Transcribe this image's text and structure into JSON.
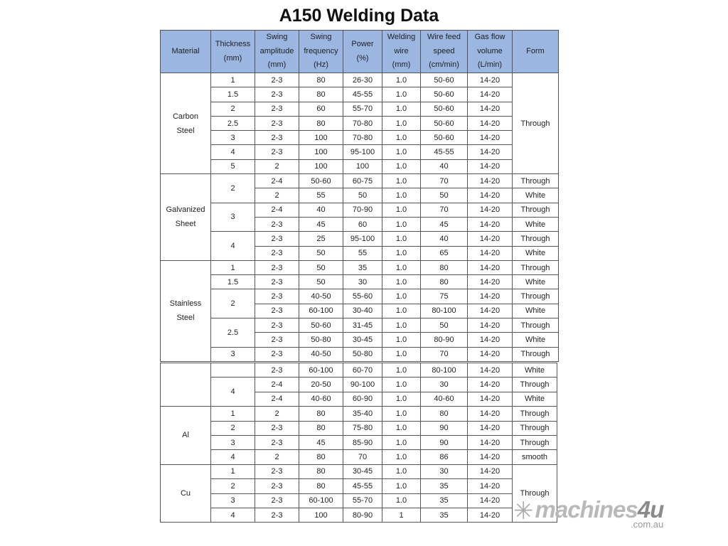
{
  "title": "A150 Welding Data",
  "headers": [
    "Material",
    "Thickness\n(mm)",
    "Swing\namplitude\n(mm)",
    "Swing\nfrequency\n(Hz)",
    "Power\n(%)",
    "Welding\nwire\n(mm)",
    "Wire feed\nspeed\n(cm/min)",
    "Gas flow\nvolume\n(L/min)",
    "Form"
  ],
  "table1": [
    {
      "m": "Carbon\nSteel",
      "ms": 7,
      "t": "1",
      "ts": 1,
      "c": [
        "2-3",
        "80",
        "26-30",
        "1.0",
        "50-60",
        "14-20"
      ],
      "f": "Through",
      "fs": 7
    },
    {
      "t": "1.5",
      "ts": 1,
      "c": [
        "2-3",
        "80",
        "45-55",
        "1.0",
        "50-60",
        "14-20"
      ]
    },
    {
      "t": "2",
      "ts": 1,
      "c": [
        "2-3",
        "60",
        "55-70",
        "1.0",
        "50-60",
        "14-20"
      ]
    },
    {
      "t": "2.5",
      "ts": 1,
      "c": [
        "2-3",
        "80",
        "70-80",
        "1.0",
        "50-60",
        "14-20"
      ]
    },
    {
      "t": "3",
      "ts": 1,
      "c": [
        "2-3",
        "100",
        "70-80",
        "1.0",
        "50-60",
        "14-20"
      ]
    },
    {
      "t": "4",
      "ts": 1,
      "c": [
        "2-3",
        "100",
        "95-100",
        "1.0",
        "45-55",
        "14-20"
      ]
    },
    {
      "t": "5",
      "ts": 1,
      "c": [
        "2",
        "100",
        "100",
        "1.0",
        "40",
        "14-20"
      ]
    },
    {
      "m": "Galvanized\nSheet",
      "ms": 6,
      "t": "2",
      "ts": 2,
      "c": [
        "2-4",
        "50-60",
        "60-75",
        "1.0",
        "70",
        "14-20"
      ],
      "f": "Through",
      "fs": 1
    },
    {
      "c": [
        "2",
        "55",
        "50",
        "1.0",
        "50",
        "14-20"
      ],
      "f": "White",
      "fs": 1
    },
    {
      "t": "3",
      "ts": 2,
      "c": [
        "2-4",
        "40",
        "70-90",
        "1.0",
        "70",
        "14-20"
      ],
      "f": "Through",
      "fs": 1
    },
    {
      "c": [
        "2-3",
        "45",
        "60",
        "1.0",
        "45",
        "14-20"
      ],
      "f": "White",
      "fs": 1
    },
    {
      "t": "4",
      "ts": 2,
      "c": [
        "2-3",
        "25",
        "95-100",
        "1.0",
        "40",
        "14-20"
      ],
      "f": "Through",
      "fs": 1
    },
    {
      "c": [
        "2-3",
        "50",
        "55",
        "1.0",
        "65",
        "14-20"
      ],
      "f": "White",
      "fs": 1
    },
    {
      "m": "Stainless\nSteel",
      "ms": 7,
      "t": "1",
      "ts": 1,
      "c": [
        "2-3",
        "50",
        "35",
        "1.0",
        "80",
        "14-20"
      ],
      "f": "Through",
      "fs": 1
    },
    {
      "t": "1.5",
      "ts": 1,
      "c": [
        "2-3",
        "50",
        "30",
        "1.0",
        "80",
        "14-20"
      ],
      "f": "White",
      "fs": 1
    },
    {
      "t": "2",
      "ts": 2,
      "c": [
        "2-3",
        "40-50",
        "55-60",
        "1.0",
        "75",
        "14-20"
      ],
      "f": "Through",
      "fs": 1
    },
    {
      "c": [
        "2-3",
        "60-100",
        "30-40",
        "1.0",
        "80-100",
        "14-20"
      ],
      "f": "White",
      "fs": 1
    },
    {
      "t": "2.5",
      "ts": 2,
      "c": [
        "2-3",
        "50-60",
        "31-45",
        "1.0",
        "50",
        "14-20"
      ],
      "f": "Through",
      "fs": 1
    },
    {
      "c": [
        "2-3",
        "50-80",
        "30-45",
        "1.0",
        "80-90",
        "14-20"
      ],
      "f": "White",
      "fs": 1
    },
    {
      "t": "3",
      "ts": 1,
      "c": [
        "2-3",
        "40-50",
        "50-80",
        "1.0",
        "70",
        "14-20"
      ],
      "f": "Through",
      "fs": 1
    }
  ],
  "table2": [
    {
      "m": "",
      "ms": 3,
      "t": "",
      "ts": 1,
      "c": [
        "2-3",
        "60-100",
        "60-70",
        "1.0",
        "80-100",
        "14-20"
      ],
      "f": "White",
      "fs": 1
    },
    {
      "t": "4",
      "ts": 2,
      "c": [
        "2-4",
        "20-50",
        "90-100",
        "1.0",
        "30",
        "14-20"
      ],
      "f": "Through",
      "fs": 1
    },
    {
      "c": [
        "2-4",
        "40-60",
        "60-90",
        "1.0",
        "40-60",
        "14-20"
      ],
      "f": "White",
      "fs": 1
    },
    {
      "m": "Al",
      "ms": 4,
      "t": "1",
      "ts": 1,
      "c": [
        "2",
        "80",
        "35-40",
        "1.0",
        "80",
        "14-20"
      ],
      "f": "Through",
      "fs": 1
    },
    {
      "t": "2",
      "ts": 1,
      "c": [
        "2-3",
        "80",
        "75-80",
        "1.0",
        "90",
        "14-20"
      ],
      "f": "Through",
      "fs": 1
    },
    {
      "t": "3",
      "ts": 1,
      "c": [
        "2-3",
        "45",
        "85-90",
        "1.0",
        "90",
        "14-20"
      ],
      "f": "Through",
      "fs": 1
    },
    {
      "t": "4",
      "ts": 1,
      "c": [
        "2",
        "80",
        "70",
        "1.0",
        "86",
        "14-20"
      ],
      "f": "smooth",
      "fs": 1
    },
    {
      "m": "Cu",
      "ms": 4,
      "t": "1",
      "ts": 1,
      "c": [
        "2-3",
        "80",
        "30-45",
        "1.0",
        "30",
        "14-20"
      ],
      "f": "Through",
      "fs": 4
    },
    {
      "t": "2",
      "ts": 1,
      "c": [
        "2-3",
        "80",
        "45-55",
        "1.0",
        "35",
        "14-20"
      ]
    },
    {
      "t": "3",
      "ts": 1,
      "c": [
        "2-3",
        "60-100",
        "55-70",
        "1.0",
        "35",
        "14-20"
      ]
    },
    {
      "t": "4",
      "ts": 1,
      "c": [
        "2-3",
        "100",
        "80-90",
        "1",
        "35",
        "14-20"
      ]
    }
  ],
  "logo": {
    "text": "machines",
    "four": "4u",
    "domain": ".com.au",
    "icon": "snowflake-icon"
  },
  "colors": {
    "header_bg": "#9bb6e0"
  }
}
